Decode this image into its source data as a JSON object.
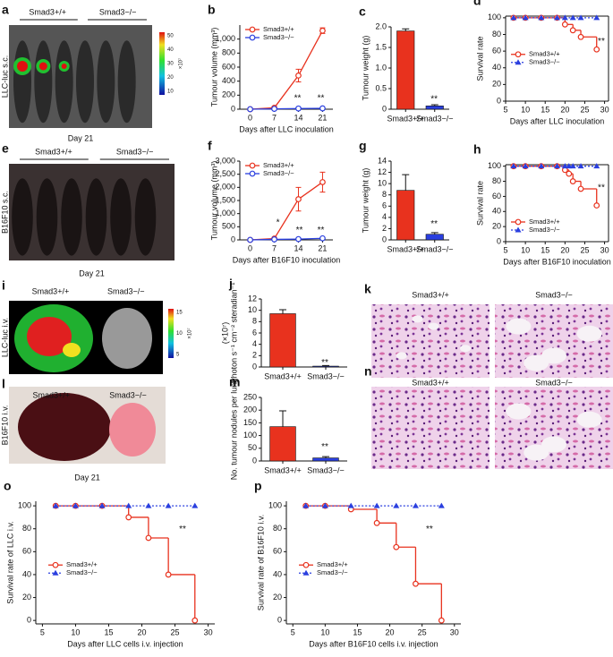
{
  "chart_data": [
    {
      "type": "line",
      "panel": "b",
      "xlabel": "Days after LLC inoculation",
      "ylabel": [
        "Tumour volume (mm³)"
      ],
      "x": [
        0,
        7,
        14,
        21
      ],
      "xlim": [
        -3,
        24
      ],
      "xticks": [
        0,
        7,
        14,
        21
      ],
      "ylim": [
        0,
        1200
      ],
      "yticks": [
        0,
        200,
        400,
        600,
        800,
        {
          "value": 1000,
          "label": "1,000"
        }
      ],
      "series": [
        {
          "name": "Smad3+/+",
          "color": "#e8321e",
          "marker": "circle",
          "values": [
            0,
            20,
            480,
            1120
          ],
          "errors": [
            0,
            15,
            90,
            40
          ]
        },
        {
          "name": "Smad3−/−",
          "color": "#2a3fdf",
          "marker": "circle",
          "values": [
            0,
            5,
            10,
            12
          ],
          "errors": [
            0,
            2,
            3,
            3
          ]
        }
      ],
      "legend": "upper left",
      "annotations": [
        "**",
        "**"
      ]
    },
    {
      "type": "bar",
      "panel": "c",
      "ylabel": [
        "Tumour weight (g)"
      ],
      "categories": [
        "Smad3+/+",
        "Smad3−/−"
      ],
      "values": [
        1.9,
        0.08
      ],
      "errors": [
        0.05,
        0.03
      ],
      "colors": [
        "#e8321e",
        "#2a3fdf"
      ],
      "ylim": [
        0,
        2
      ],
      "yticks": [
        0,
        {
          "value": 0.5,
          "label": "0.5"
        },
        {
          "value": 1,
          "label": "1.0"
        },
        {
          "value": 1.5,
          "label": "1.5"
        },
        {
          "value": 2,
          "label": "2.0"
        }
      ],
      "annotations": [
        "**"
      ]
    },
    {
      "type": "step",
      "panel": "d",
      "xlabel": "Days after LLC inoculation",
      "ylabel": [
        "Survival rate"
      ],
      "frame": true,
      "xlim": [
        5,
        31
      ],
      "xticks": [
        5,
        10,
        15,
        20,
        25,
        30
      ],
      "ylim": [
        0,
        102
      ],
      "yticks": [
        0,
        20,
        40,
        60,
        80,
        100
      ],
      "series": [
        {
          "name": "Smad3+/+",
          "color": "#e8321e",
          "marker": "circle",
          "x": [
            7,
            10,
            14,
            18,
            20,
            22,
            24,
            28
          ],
          "values": [
            100,
            100,
            100,
            100,
            92,
            85,
            77,
            62
          ]
        },
        {
          "name": "Smad3−/−",
          "color": "#2a3fdf",
          "marker": "triangle",
          "dotted": true,
          "x": [
            7,
            10,
            14,
            18,
            20,
            22,
            24,
            28
          ],
          "values": [
            100,
            100,
            100,
            100,
            100,
            100,
            100,
            100
          ]
        }
      ],
      "legend": "center left",
      "annotations": [
        "**"
      ]
    },
    {
      "type": "line",
      "panel": "f",
      "xlabel": "Days after B16F10 inoculation",
      "ylabel": [
        "Tumour volume (mm³)"
      ],
      "x": [
        0,
        7,
        14,
        21
      ],
      "xlim": [
        -3,
        24
      ],
      "xticks": [
        0,
        7,
        14,
        21
      ],
      "ylim": [
        0,
        3000
      ],
      "yticks": [
        0,
        500,
        {
          "value": 1000,
          "label": "1,000"
        },
        {
          "value": 1500,
          "label": "1,500"
        },
        {
          "value": 2000,
          "label": "2,000"
        },
        {
          "value": 2500,
          "label": "2,500"
        },
        {
          "value": 3000,
          "label": "3,000"
        }
      ],
      "series": [
        {
          "name": "Smad3+/+",
          "color": "#e8321e",
          "marker": "circle",
          "values": [
            0,
            50,
            1550,
            2200
          ],
          "errors": [
            0,
            30,
            450,
            380
          ]
        },
        {
          "name": "Smad3−/−",
          "color": "#2a3fdf",
          "marker": "circle",
          "values": [
            0,
            20,
            30,
            60
          ],
          "errors": [
            0,
            5,
            10,
            20
          ]
        }
      ],
      "legend": "upper left",
      "annotations": [
        "*",
        "**",
        "**"
      ]
    },
    {
      "type": "bar",
      "panel": "g",
      "ylabel": [
        "Tumour weight (g)"
      ],
      "categories": [
        "Smad3+/+",
        "Smad3−/−"
      ],
      "values": [
        8.8,
        1.0
      ],
      "errors": [
        2.8,
        0.3
      ],
      "colors": [
        "#e8321e",
        "#2a3fdf"
      ],
      "ylim": [
        0,
        14
      ],
      "yticks": [
        0,
        2,
        4,
        6,
        8,
        10,
        12,
        14
      ],
      "annotations": [
        "**"
      ]
    },
    {
      "type": "step",
      "panel": "h",
      "xlabel": "Days after B16F10 inoculation",
      "ylabel": [
        "Survival rate"
      ],
      "frame": true,
      "xlim": [
        5,
        31
      ],
      "xticks": [
        5,
        10,
        15,
        20,
        25,
        30
      ],
      "ylim": [
        0,
        102
      ],
      "yticks": [
        0,
        20,
        40,
        60,
        80,
        100
      ],
      "series": [
        {
          "name": "Smad3+/+",
          "color": "#e8321e",
          "marker": "circle",
          "x": [
            7,
            10,
            14,
            18,
            20,
            21,
            22,
            24,
            28
          ],
          "values": [
            100,
            100,
            100,
            100,
            95,
            90,
            80,
            70,
            48
          ]
        },
        {
          "name": "Smad3−/−",
          "color": "#2a3fdf",
          "marker": "triangle",
          "dotted": true,
          "x": [
            7,
            10,
            14,
            18,
            20,
            21,
            22,
            24,
            28
          ],
          "values": [
            100,
            100,
            100,
            100,
            100,
            100,
            100,
            100,
            100
          ]
        }
      ],
      "legend": "lower left",
      "annotations": [
        "**"
      ]
    },
    {
      "type": "bar",
      "panel": "j",
      "ylabel": [
        "Photon s⁻¹ cm⁻² steradian⁻¹",
        "(×10⁷)"
      ],
      "categories": [
        "Smad3+/+",
        "Smad3−/−"
      ],
      "values": [
        9.4,
        0.15
      ],
      "errors": [
        0.7,
        0.1
      ],
      "colors": [
        "#e8321e",
        "#2a3fdf"
      ],
      "ylim": [
        0,
        12
      ],
      "yticks": [
        0,
        2,
        4,
        6,
        8,
        10,
        12
      ],
      "annotations": [
        "**"
      ]
    },
    {
      "type": "bar",
      "panel": "m",
      "ylabel": [
        "No. tumour nodules per lung"
      ],
      "categories": [
        "Smad3+/+",
        "Smad3−/−"
      ],
      "values": [
        135,
        12
      ],
      "errors": [
        62,
        5
      ],
      "colors": [
        "#e8321e",
        "#2a3fdf"
      ],
      "ylim": [
        0,
        250
      ],
      "yticks": [
        0,
        50,
        100,
        150,
        200,
        250
      ],
      "annotations": [
        "**"
      ]
    },
    {
      "type": "step",
      "panel": "o",
      "xlabel": "Days after LLC cells i.v. injection",
      "ylabel": [
        "Survival rate of LLC i.v."
      ],
      "xlim": [
        4,
        31
      ],
      "xticks": [
        5,
        10,
        15,
        20,
        25,
        30
      ],
      "ylim": [
        -3,
        104
      ],
      "yticks": [
        0,
        20,
        40,
        60,
        80,
        100
      ],
      "series": [
        {
          "name": "Smad3+/+",
          "color": "#e8321e",
          "marker": "circle",
          "x": [
            7,
            10,
            14,
            18,
            21,
            24,
            28
          ],
          "values": [
            100,
            100,
            100,
            90,
            72,
            40,
            0
          ]
        },
        {
          "name": "Smad3−/−",
          "color": "#2a3fdf",
          "marker": "triangle",
          "dotted": true,
          "x": [
            7,
            10,
            14,
            18,
            21,
            24,
            28
          ],
          "values": [
            100,
            100,
            100,
            100,
            100,
            100,
            100
          ]
        }
      ],
      "legend": "center left",
      "annotations": [
        "**"
      ]
    },
    {
      "type": "step",
      "panel": "p",
      "xlabel": "Days after B16F10 cells i.v. injection",
      "ylabel": [
        "Survival rate of B16F10 i.v."
      ],
      "xlim": [
        4,
        31
      ],
      "xticks": [
        5,
        10,
        15,
        20,
        25,
        30
      ],
      "ylim": [
        -3,
        104
      ],
      "yticks": [
        0,
        20,
        40,
        60,
        80,
        100
      ],
      "series": [
        {
          "name": "Smad3+/+",
          "color": "#e8321e",
          "marker": "circle",
          "x": [
            7,
            10,
            14,
            18,
            21,
            24,
            28
          ],
          "values": [
            100,
            100,
            97,
            85,
            64,
            32,
            0
          ]
        },
        {
          "name": "Smad3−/−",
          "color": "#2a3fdf",
          "marker": "triangle",
          "dotted": true,
          "x": [
            7,
            10,
            14,
            18,
            21,
            24,
            28
          ],
          "values": [
            100,
            100,
            100,
            100,
            100,
            100,
            100
          ]
        }
      ],
      "legend": "center left",
      "annotations": [
        "**"
      ]
    }
  ],
  "images": [
    {
      "panel": "a",
      "group1": "Smad3+/+",
      "group2": "Smad3−/−",
      "side": "LLC-luc  s.c.",
      "caption": "Day 21",
      "colorbar": [
        "50",
        "40",
        "30",
        "20",
        "10"
      ],
      "colorbar_unit": "×10⁷"
    },
    {
      "panel": "e",
      "group1": "Smad3+/+",
      "group2": "Smad3−/−",
      "side": "B16F10  s.c.",
      "caption": "Day 21"
    },
    {
      "panel": "i",
      "group1": "Smad3+/+",
      "group2": "Smad3−/−",
      "side": "LLC-luc  i.v.",
      "colorbar": [
        "15",
        "10",
        "5"
      ],
      "colorbar_unit": "×10⁷"
    },
    {
      "panel": "k",
      "group1": "Smad3+/+",
      "group2": "Smad3−/−"
    },
    {
      "panel": "l",
      "group1": "Smad3+/+",
      "group2": "Smad3−/−",
      "side": "B16F10  i.v.",
      "caption": "Day 21"
    },
    {
      "panel": "n",
      "group1": "Smad3+/+",
      "group2": "Smad3−/−"
    }
  ]
}
